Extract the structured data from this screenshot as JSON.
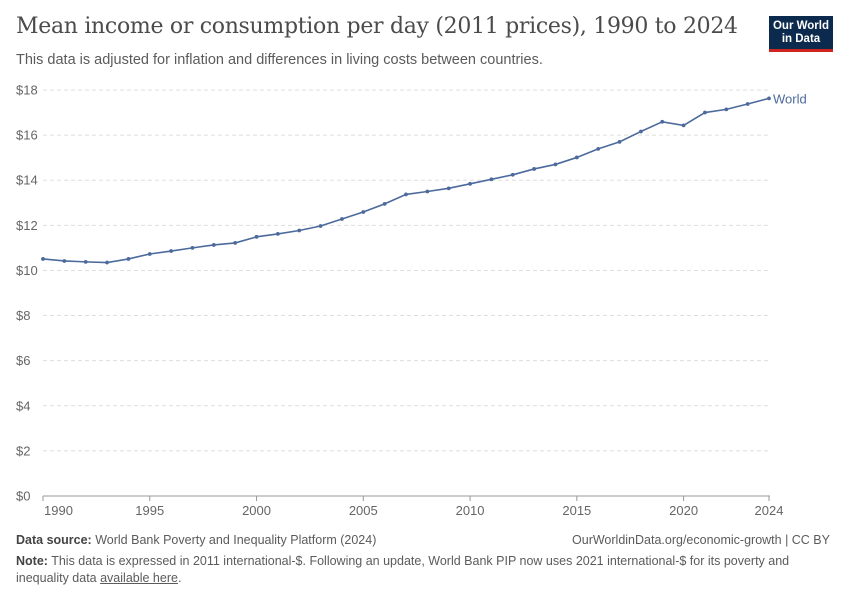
{
  "header": {
    "title": "Mean income or consumption per day (2011 prices), 1990 to 2024",
    "subtitle": "This data is adjusted for inflation and differences in living costs between countries.",
    "logo": "Our World in Data"
  },
  "chart_data": {
    "type": "line",
    "title": "Mean income or consumption per day (2011 prices), 1990 to 2024",
    "x": [
      1990,
      1991,
      1992,
      1993,
      1994,
      1995,
      1996,
      1997,
      1998,
      1999,
      2000,
      2001,
      2002,
      2003,
      2004,
      2005,
      2006,
      2007,
      2008,
      2009,
      2010,
      2011,
      2012,
      2013,
      2014,
      2015,
      2016,
      2017,
      2018,
      2019,
      2020,
      2021,
      2022,
      2023,
      2024
    ],
    "series": [
      {
        "name": "World",
        "color": "#4c6a9c",
        "values": [
          10.51,
          10.42,
          10.38,
          10.35,
          10.51,
          10.73,
          10.86,
          11.0,
          11.13,
          11.22,
          11.49,
          11.62,
          11.77,
          11.97,
          12.28,
          12.59,
          12.95,
          13.37,
          13.5,
          13.64,
          13.84,
          14.04,
          14.24,
          14.5,
          14.7,
          15.01,
          15.39,
          15.7,
          16.16,
          16.59,
          16.43,
          17.0,
          17.14,
          17.38,
          17.63
        ]
      }
    ],
    "xlim": [
      1990,
      2024
    ],
    "ylim": [
      0,
      18
    ],
    "xticks": [
      1990,
      1995,
      2000,
      2005,
      2010,
      2015,
      2020,
      2024
    ],
    "yticks": [
      0,
      2,
      4,
      6,
      8,
      10,
      12,
      14,
      16,
      18
    ],
    "ytick_labels": [
      "$0",
      "$2",
      "$4",
      "$6",
      "$8",
      "$10",
      "$12",
      "$14",
      "$16",
      "$18"
    ],
    "grid": "horizontal dashed",
    "legend": "end-of-line label"
  },
  "footer": {
    "source_label": "Data source:",
    "source": "World Bank Poverty and Inequality Platform (2024)",
    "url": "OurWorldinData.org/economic-growth | CC BY",
    "note_label": "Note:",
    "note": "This data is expressed in 2011 international-$. Following an update, World Bank PIP now uses 2021 international-$ for its poverty and inequality data",
    "note_link": "available here",
    "note_end": "."
  }
}
